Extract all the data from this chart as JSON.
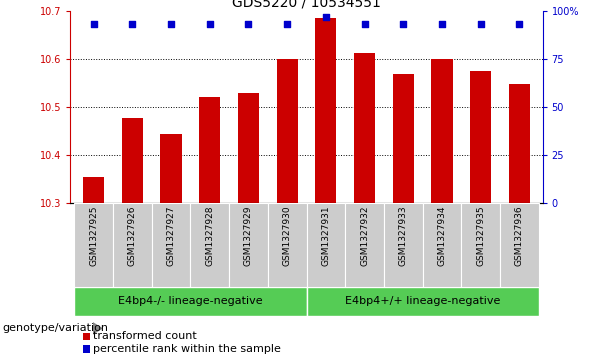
{
  "title": "GDS5220 / 10534551",
  "samples": [
    "GSM1327925",
    "GSM1327926",
    "GSM1327927",
    "GSM1327928",
    "GSM1327929",
    "GSM1327930",
    "GSM1327931",
    "GSM1327932",
    "GSM1327933",
    "GSM1327934",
    "GSM1327935",
    "GSM1327936"
  ],
  "transformed_counts": [
    10.355,
    10.478,
    10.445,
    10.522,
    10.53,
    10.6,
    10.685,
    10.613,
    10.568,
    10.6,
    10.575,
    10.548
  ],
  "percentile_ranks": [
    93,
    93,
    93,
    93,
    93,
    93,
    97,
    93,
    93,
    93,
    93,
    93
  ],
  "bar_color": "#cc0000",
  "dot_color": "#0000cc",
  "ylim_left": [
    10.3,
    10.7
  ],
  "ylim_right": [
    0,
    100
  ],
  "yticks_left": [
    10.3,
    10.4,
    10.5,
    10.6,
    10.7
  ],
  "yticks_right": [
    0,
    25,
    50,
    75,
    100
  ],
  "ytick_labels_right": [
    "0",
    "25",
    "50",
    "75",
    "100%"
  ],
  "grid_values": [
    10.4,
    10.5,
    10.6
  ],
  "group1_label": "E4bp4-/- lineage-negative",
  "group2_label": "E4bp4+/+ lineage-negative",
  "group1_count": 6,
  "group2_count": 6,
  "group_color": "#55cc55",
  "sample_bg_color": "#cccccc",
  "xlabel_left": "genotype/variation",
  "legend_red": "transformed count",
  "legend_blue": "percentile rank within the sample",
  "bar_bottom": 10.3,
  "title_fontsize": 10,
  "tick_fontsize": 7,
  "label_fontsize": 8,
  "bar_width": 0.55
}
